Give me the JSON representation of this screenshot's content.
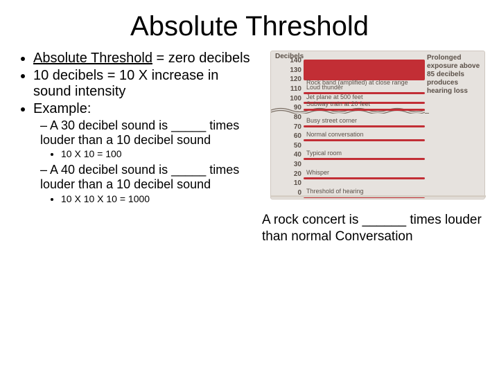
{
  "title": "Absolute Threshold",
  "bullets": {
    "b1_prefix": "Absolute Threshold",
    "b1_suffix": " = zero decibels",
    "b2": "10 decibels = 10 X increase in sound intensity",
    "b3": "Example:",
    "sub1": "A 30 decibel sound is _____ times louder than a 10 decibel sound",
    "sub1_calc": "10 X 10 = 100",
    "sub2": "A 40 decibel sound is _____ times louder than a 10 decibel sound",
    "sub2_calc": "10 X 10 X 10 = 1000"
  },
  "question_text": "A rock concert is ______ times louder than normal Conversation",
  "chart": {
    "header": "Decibels",
    "bg_color": "#e6e2de",
    "text_color": "#5b5048",
    "bar_color": "#c22e35",
    "ymin": 0,
    "ymax": 140,
    "tick_step": 10,
    "ticks": [
      "140",
      "130",
      "120",
      "110",
      "100",
      "90",
      "80",
      "70",
      "60",
      "50",
      "40",
      "30",
      "20",
      "10",
      "0"
    ],
    "items": [
      {
        "db": 120,
        "label": "Rock band (amplified) at close range",
        "bar_to": 140
      },
      {
        "db": 110,
        "label": "Loud thunder"
      },
      {
        "db": 100,
        "label": "Jet plane at 500 feet"
      },
      {
        "db": 92,
        "label": "Subway train at 20 feet"
      },
      {
        "db": 75,
        "label": "Busy street corner"
      },
      {
        "db": 60,
        "label": "Normal conversation"
      },
      {
        "db": 40,
        "label": "Typical room"
      },
      {
        "db": 20,
        "label": "Whisper"
      },
      {
        "db": 0,
        "label": "Threshold of hearing"
      }
    ],
    "break_at_db": 88,
    "callout": "Prolonged exposure above 85 decibels produces hearing loss",
    "callout_line_db": 85
  }
}
